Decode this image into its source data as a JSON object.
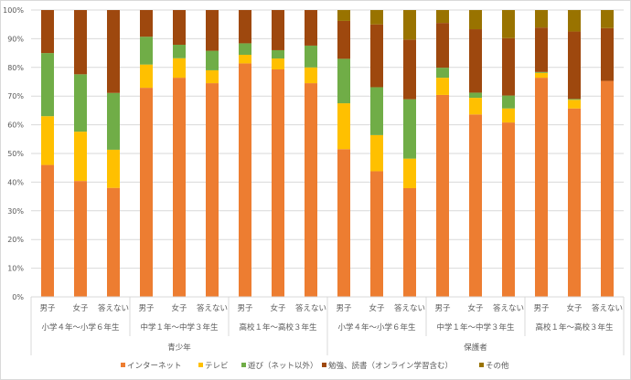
{
  "chart_data": {
    "type": "bar",
    "stacked": "percent",
    "ylim": [
      0,
      100
    ],
    "y_ticks": [
      "0%",
      "10%",
      "20%",
      "30%",
      "40%",
      "50%",
      "60%",
      "70%",
      "80%",
      "90%",
      "100%"
    ],
    "grid": true,
    "legend_position": "bottom",
    "categories": [
      "男子",
      "女子",
      "答えない",
      "男子",
      "女子",
      "答えない",
      "男子",
      "女子",
      "答えない",
      "男子",
      "女子",
      "答えない",
      "男子",
      "女子",
      "答えない",
      "男子",
      "女子",
      "答えない"
    ],
    "groups": [
      "小学４年～小学６年生",
      "中学１年～中学３年生",
      "高校１年～高校３年生",
      "小学４年～小学６年生",
      "中学１年～中学３年生",
      "高校１年～高校３年生"
    ],
    "top_groups": [
      "青少年",
      "保護者"
    ],
    "series": [
      {
        "name": "インターネット",
        "color": "#ED7D31",
        "values": [
          46,
          40.4,
          38,
          72.9,
          76.4,
          74.5,
          81.4,
          79.3,
          74.5,
          51.5,
          43.8,
          37.9,
          70.4,
          63.6,
          60.8,
          76.4,
          65.7,
          75.3
        ]
      },
      {
        "name": "テレビ",
        "color": "#FFC000",
        "values": [
          17,
          17.2,
          13.3,
          8.1,
          6.8,
          4.5,
          3,
          3.8,
          5.5,
          16,
          12.6,
          10.3,
          6,
          5.8,
          4.9,
          1.7,
          3,
          0
        ]
      },
      {
        "name": "遊び（ネット以外）",
        "color": "#70AD47",
        "values": [
          22,
          20,
          19.8,
          9.7,
          4.7,
          6.8,
          4,
          2.9,
          7.6,
          15.5,
          16.7,
          20.7,
          3.5,
          1.8,
          4.5,
          0.3,
          0.3,
          0
        ]
      },
      {
        "name": "勉強、読書（オンライン学習含む）",
        "color": "#9E480E",
        "values": [
          15,
          22.4,
          28.9,
          9.3,
          12.1,
          14.2,
          11.6,
          14,
          12.4,
          13.2,
          21.9,
          20.8,
          15.6,
          22.1,
          20,
          15.5,
          23.5,
          18.4
        ]
      },
      {
        "name": "その他",
        "color": "#997300",
        "values": [
          0,
          0,
          0,
          0,
          0,
          0,
          0,
          0,
          0,
          3.8,
          5,
          10.3,
          4.5,
          6.7,
          9.8,
          6.1,
          7.5,
          6.3
        ]
      }
    ]
  }
}
